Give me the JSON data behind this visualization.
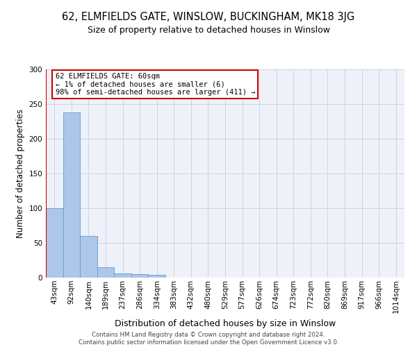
{
  "title": "62, ELMFIELDS GATE, WINSLOW, BUCKINGHAM, MK18 3JG",
  "subtitle": "Size of property relative to detached houses in Winslow",
  "xlabel": "Distribution of detached houses by size in Winslow",
  "ylabel": "Number of detached properties",
  "bin_labels": [
    "43sqm",
    "92sqm",
    "140sqm",
    "189sqm",
    "237sqm",
    "286sqm",
    "334sqm",
    "383sqm",
    "432sqm",
    "480sqm",
    "529sqm",
    "577sqm",
    "626sqm",
    "674sqm",
    "723sqm",
    "772sqm",
    "820sqm",
    "869sqm",
    "917sqm",
    "966sqm",
    "1014sqm"
  ],
  "bar_values": [
    100,
    238,
    60,
    15,
    6,
    5,
    4,
    0,
    0,
    0,
    0,
    0,
    0,
    0,
    0,
    0,
    0,
    0,
    0,
    0,
    0
  ],
  "bar_color": "#aec6e8",
  "bar_edge_color": "#5a9fd4",
  "ylim": [
    0,
    300
  ],
  "yticks": [
    0,
    50,
    100,
    150,
    200,
    250,
    300
  ],
  "annotation_lines": [
    "62 ELMFIELDS GATE: 60sqm",
    "← 1% of detached houses are smaller (6)",
    "98% of semi-detached houses are larger (411) →"
  ],
  "annotation_box_color": "#ffffff",
  "annotation_box_edge": "#cc0000",
  "vline_color": "#cc0000",
  "footer_line1": "Contains HM Land Registry data © Crown copyright and database right 2024.",
  "footer_line2": "Contains public sector information licensed under the Open Government Licence v3.0.",
  "background_color": "#eef2f8",
  "grid_color": "#c8d4e8",
  "title_fontsize": 10.5,
  "subtitle_fontsize": 9,
  "ylabel_fontsize": 8.5,
  "xlabel_fontsize": 9,
  "tick_fontsize": 7.5,
  "ann_fontsize": 7.5,
  "footer_fontsize": 6.2
}
